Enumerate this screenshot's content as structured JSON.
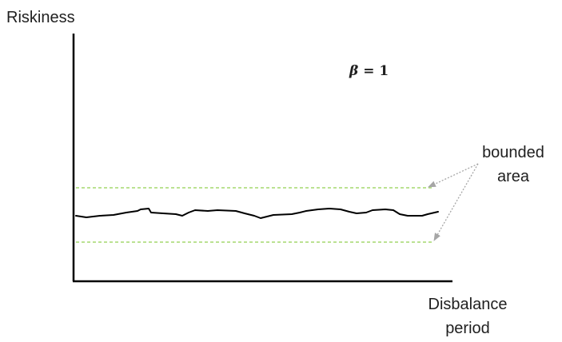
{
  "axes": {
    "y_label": "Riskiness",
    "x_label_line1": "Disbalance",
    "x_label_line2": "period"
  },
  "formula": {
    "symbol": "β",
    "equals": " = ",
    "value": "1"
  },
  "annotation": {
    "line1": "bounded",
    "line2": "area"
  },
  "colors": {
    "axis": "#000000",
    "curve": "#000000",
    "bound_line": "#92d050",
    "arrow": "#a6a6a6",
    "text": "#1f1f1f"
  }
}
